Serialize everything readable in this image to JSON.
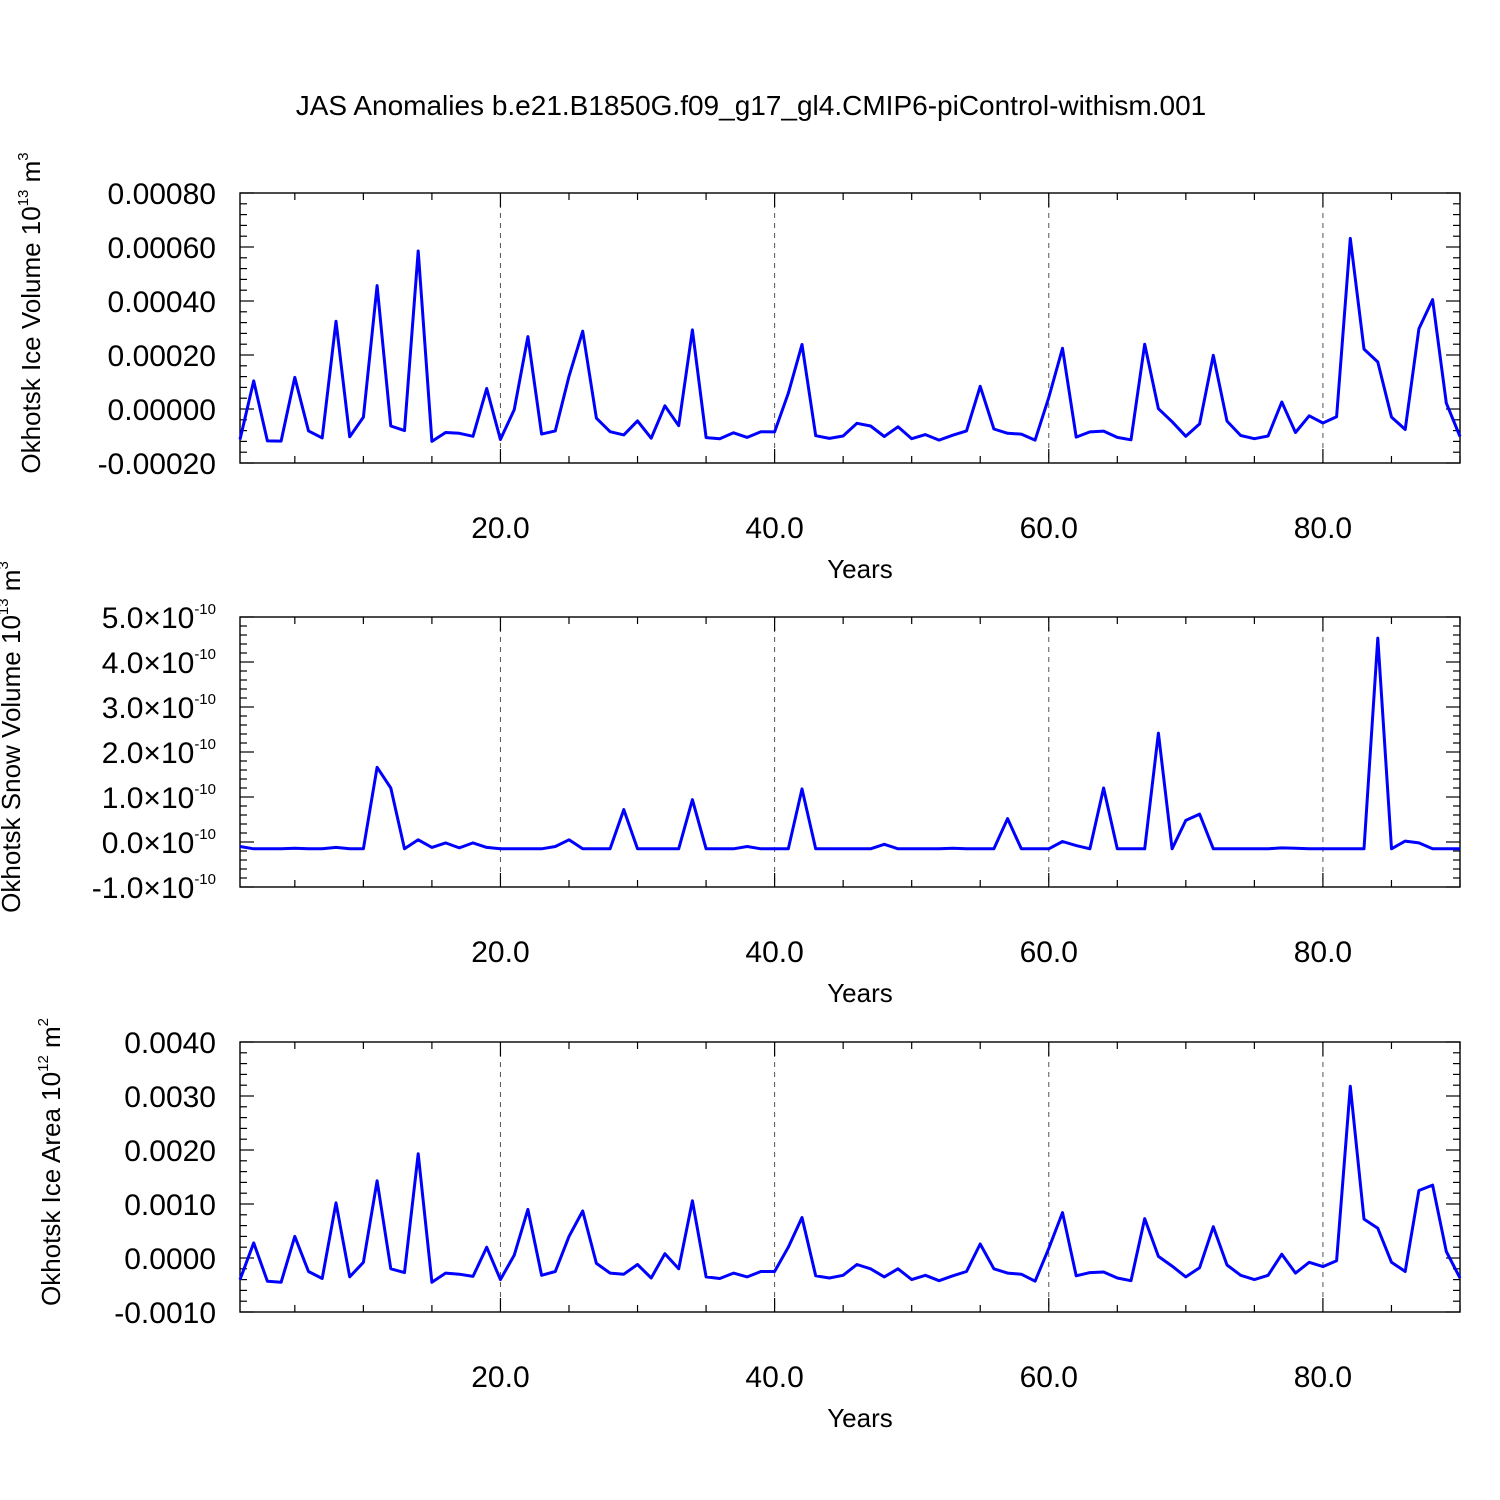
{
  "title": "JAS Anomalies b.e21.B1850G.f09_g17_gl4.CMIP6-piControl-withism.001",
  "colors": {
    "series": "#0000ff",
    "axes": "#000000",
    "grid": "#555555"
  },
  "chart_data": [
    {
      "type": "line",
      "ylabel": {
        "text": "Okhotsk Ice Volume 10",
        "sup": "13",
        "unit": " m",
        "unit_sup": "3"
      },
      "xlabel": "Years",
      "xlim": [
        1,
        90
      ],
      "ylim": [
        -0.0002,
        0.0008
      ],
      "x_ticks": [
        20,
        40,
        60,
        80
      ],
      "x_tick_labels": [
        "20.0",
        "40.0",
        "60.0",
        "80.0"
      ],
      "y_ticks": [
        -0.0002,
        0.0,
        0.0002,
        0.0004,
        0.0006,
        0.0008
      ],
      "y_tick_labels": [
        "-0.00020",
        "0.00000",
        "0.00020",
        "0.00040",
        "0.00060",
        "0.00080"
      ],
      "grid": "dashed vertical at x ticks",
      "x": [
        1,
        2,
        3,
        4,
        5,
        6,
        7,
        8,
        9,
        10,
        11,
        12,
        13,
        14,
        15,
        16,
        17,
        18,
        19,
        20,
        21,
        22,
        23,
        24,
        25,
        26,
        27,
        28,
        29,
        30,
        31,
        32,
        33,
        34,
        35,
        36,
        37,
        38,
        39,
        40,
        41,
        42,
        43,
        44,
        45,
        46,
        47,
        48,
        49,
        50,
        51,
        52,
        53,
        54,
        55,
        56,
        57,
        58,
        59,
        60,
        61,
        62,
        63,
        64,
        65,
        66,
        67,
        68,
        69,
        70,
        71,
        72,
        73,
        74,
        75,
        76,
        77,
        78,
        79,
        80,
        81,
        82,
        83,
        84,
        85,
        86,
        87,
        88,
        89,
        90
      ],
      "values": [
        -0.000113,
        0.000104,
        -0.000118,
        -0.000119,
        0.000117,
        -8.1e-05,
        -0.000107,
        0.000325,
        -0.000103,
        -3e-05,
        0.000457,
        -6.3e-05,
        -8e-05,
        0.000585,
        -0.00012,
        -8.7e-05,
        -9e-05,
        -0.000101,
        7.6e-05,
        -0.000113,
        -3e-06,
        0.000268,
        -9.3e-05,
        -8.1e-05,
        0.000121,
        0.000288,
        -3.4e-05,
        -8.4e-05,
        -9.6e-05,
        -4.4e-05,
        -0.000108,
        1.2e-05,
        -6.2e-05,
        0.000293,
        -0.000106,
        -0.00011,
        -8.8e-05,
        -0.000105,
        -8.4e-05,
        -8.5e-05,
        5.8e-05,
        0.000239,
        -9.9e-05,
        -0.000109,
        -0.0001,
        -5.3e-05,
        -6.3e-05,
        -0.000102,
        -6.6e-05,
        -0.00011,
        -9.5e-05,
        -0.000115,
        -9.7e-05,
        -8.1e-05,
        8.4e-05,
        -7.4e-05,
        -9e-05,
        -9.3e-05,
        -0.000115,
        4.3e-05,
        0.000225,
        -0.000104,
        -8.5e-05,
        -8.2e-05,
        -0.000105,
        -0.000114,
        0.00024,
        1e-06,
        -4.7e-05,
        -0.000101,
        -5.5e-05,
        0.000199,
        -4.5e-05,
        -9.8e-05,
        -0.00011,
        -0.0001,
        2.6e-05,
        -8.7e-05,
        -2.5e-05,
        -5.2e-05,
        -2.9e-05,
        0.000632,
        0.000222,
        0.000174,
        -3e-05,
        -7.6e-05,
        0.000297,
        0.000405,
        2.2e-05,
        -0.000102
      ]
    },
    {
      "type": "line",
      "ylabel": {
        "text": "Okhotsk Snow Volume 10",
        "sup": "13",
        "unit": " m",
        "unit_sup": "3"
      },
      "xlabel": "Years",
      "xlim": [
        1,
        90
      ],
      "ylim": [
        -1e-10,
        5e-10
      ],
      "x_ticks": [
        20,
        40,
        60,
        80
      ],
      "x_tick_labels": [
        "20.0",
        "40.0",
        "60.0",
        "80.0"
      ],
      "y_ticks": [
        -1e-10,
        0.0,
        1e-10,
        2e-10,
        3e-10,
        4e-10,
        5e-10
      ],
      "y_tick_labels": [
        {
          "mantissa": "-1.0",
          "exp": "-10"
        },
        {
          "mantissa": "0.0",
          "exp": "-10"
        },
        {
          "mantissa": "1.0",
          "exp": "-10"
        },
        {
          "mantissa": "2.0",
          "exp": "-10"
        },
        {
          "mantissa": "3.0",
          "exp": "-10"
        },
        {
          "mantissa": "4.0",
          "exp": "-10"
        },
        {
          "mantissa": "5.0",
          "exp": "-10"
        }
      ],
      "grid": "dashed vertical at x ticks",
      "x": [
        1,
        2,
        3,
        4,
        5,
        6,
        7,
        8,
        9,
        10,
        11,
        12,
        13,
        14,
        15,
        16,
        17,
        18,
        19,
        20,
        21,
        22,
        23,
        24,
        25,
        26,
        27,
        28,
        29,
        30,
        31,
        32,
        33,
        34,
        35,
        36,
        37,
        38,
        39,
        40,
        41,
        42,
        43,
        44,
        45,
        46,
        47,
        48,
        49,
        50,
        51,
        52,
        53,
        54,
        55,
        56,
        57,
        58,
        59,
        60,
        61,
        62,
        63,
        64,
        65,
        66,
        67,
        68,
        69,
        70,
        71,
        72,
        73,
        74,
        75,
        76,
        77,
        78,
        79,
        80,
        81,
        82,
        83,
        84,
        85,
        86,
        87,
        88,
        89,
        90
      ],
      "values": [
        -1e-11,
        -1.5e-11,
        -1.5e-11,
        -1.5e-11,
        -1.4e-11,
        -1.5e-11,
        -1.5e-11,
        -1.2e-11,
        -1.5e-11,
        -1.5e-11,
        1.66e-10,
        1.2e-10,
        -1.5e-11,
        5e-12,
        -1.2e-11,
        -2e-12,
        -1.3e-11,
        -2e-12,
        -1.2e-11,
        -1.5e-11,
        -1.5e-11,
        -1.5e-11,
        -1.5e-11,
        -1e-11,
        5e-12,
        -1.5e-11,
        -1.5e-11,
        -1.5e-11,
        7.2e-11,
        -1.5e-11,
        -1.5e-11,
        -1.5e-11,
        -1.5e-11,
        9.4e-11,
        -1.5e-11,
        -1.5e-11,
        -1.5e-11,
        -1e-11,
        -1.5e-11,
        -1.5e-11,
        -1.5e-11,
        1.18e-10,
        -1.5e-11,
        -1.5e-11,
        -1.5e-11,
        -1.5e-11,
        -1.5e-11,
        -5e-12,
        -1.5e-11,
        -1.5e-11,
        -1.5e-11,
        -1.5e-11,
        -1.4e-11,
        -1.5e-11,
        -1.5e-11,
        -1.5e-11,
        5.2e-11,
        -1.5e-11,
        -1.5e-11,
        -1.5e-11,
        1e-12,
        -8e-12,
        -1.5e-11,
        1.2e-10,
        -1.5e-11,
        -1.5e-11,
        -1.5e-11,
        2.42e-10,
        -1.5e-11,
        4.8e-11,
        6.2e-11,
        -1.5e-11,
        -1.5e-11,
        -1.5e-11,
        -1.5e-11,
        -1.5e-11,
        -1.3e-11,
        -1.4e-11,
        -1.5e-11,
        -1.5e-11,
        -1.5e-11,
        -1.5e-11,
        -1.5e-11,
        4.53e-10,
        -1.5e-11,
        2e-12,
        -2e-12,
        -1.5e-11,
        -1.5e-11,
        -1.5e-11
      ]
    },
    {
      "type": "line",
      "ylabel": {
        "text": "Okhotsk Ice Area 10",
        "sup": "12",
        "unit": " m",
        "unit_sup": "2"
      },
      "xlabel": "Years",
      "xlim": [
        1,
        90
      ],
      "ylim": [
        -0.001,
        0.004
      ],
      "x_ticks": [
        20,
        40,
        60,
        80
      ],
      "x_tick_labels": [
        "20.0",
        "40.0",
        "60.0",
        "80.0"
      ],
      "y_ticks": [
        -0.001,
        0.0,
        0.001,
        0.002,
        0.003,
        0.004
      ],
      "y_tick_labels": [
        "-0.0010",
        "0.0000",
        "0.0010",
        "0.0020",
        "0.0030",
        "0.0040"
      ],
      "grid": "dashed vertical at x ticks",
      "x": [
        1,
        2,
        3,
        4,
        5,
        6,
        7,
        8,
        9,
        10,
        11,
        12,
        13,
        14,
        15,
        16,
        17,
        18,
        19,
        20,
        21,
        22,
        23,
        24,
        25,
        26,
        27,
        28,
        29,
        30,
        31,
        32,
        33,
        34,
        35,
        36,
        37,
        38,
        39,
        40,
        41,
        42,
        43,
        44,
        45,
        46,
        47,
        48,
        49,
        50,
        51,
        52,
        53,
        54,
        55,
        56,
        57,
        58,
        59,
        60,
        61,
        62,
        63,
        64,
        65,
        66,
        67,
        68,
        69,
        70,
        71,
        72,
        73,
        74,
        75,
        76,
        77,
        78,
        79,
        80,
        81,
        82,
        83,
        84,
        85,
        86,
        87,
        88,
        89,
        90
      ],
      "values": [
        -0.0004,
        0.00028,
        -0.00043,
        -0.00045,
        0.0004,
        -0.00025,
        -0.00038,
        0.00102,
        -0.00035,
        -8e-05,
        0.00143,
        -0.0002,
        -0.00027,
        0.00193,
        -0.00045,
        -0.00028,
        -0.0003,
        -0.00034,
        0.0002,
        -0.0004,
        5e-05,
        0.0009,
        -0.00032,
        -0.00025,
        0.0004,
        0.00087,
        -0.0001,
        -0.00028,
        -0.0003,
        -0.00012,
        -0.00037,
        8e-05,
        -0.0002,
        0.00106,
        -0.00035,
        -0.00038,
        -0.00028,
        -0.00035,
        -0.00025,
        -0.00025,
        0.0002,
        0.00075,
        -0.00033,
        -0.00037,
        -0.00032,
        -0.00012,
        -0.0002,
        -0.00035,
        -0.0002,
        -0.0004,
        -0.00032,
        -0.00042,
        -0.00033,
        -0.00025,
        0.00026,
        -0.0002,
        -0.00028,
        -0.0003,
        -0.00043,
        0.00018,
        0.00084,
        -0.00033,
        -0.00027,
        -0.00026,
        -0.00037,
        -0.00042,
        0.00073,
        3e-05,
        -0.00015,
        -0.00035,
        -0.00018,
        0.00058,
        -0.00013,
        -0.00032,
        -0.0004,
        -0.00032,
        7e-05,
        -0.00028,
        -8e-05,
        -0.00016,
        -5e-05,
        0.00318,
        0.00072,
        0.00055,
        -8e-05,
        -0.00025,
        0.00125,
        0.00135,
        0.00012,
        -0.00037
      ]
    }
  ]
}
